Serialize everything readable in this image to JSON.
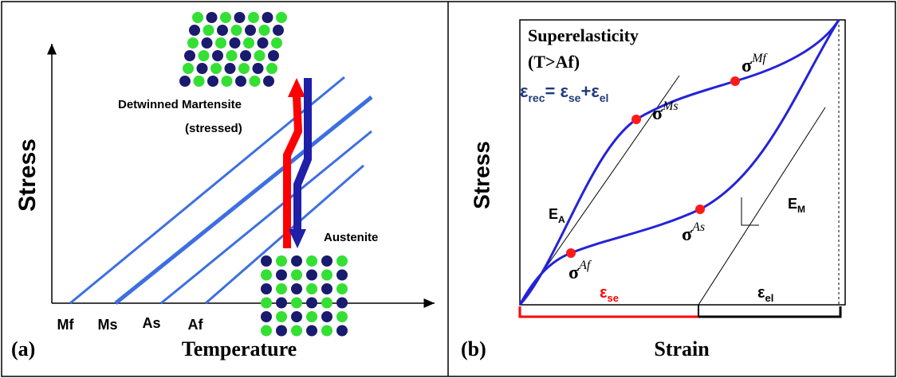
{
  "panel_a": {
    "y_label": "Stress",
    "x_label": "Temperature",
    "panel_label": "(a)",
    "ticks": [
      "Mf",
      "Ms",
      "As",
      "Af"
    ],
    "phase_top": "Detwinned Martensite",
    "phase_top_note": "(stressed)",
    "phase_bottom": "Austenite"
  },
  "panel_b": {
    "y_label": "Stress",
    "x_label": "Strain",
    "panel_label": "(b)",
    "title": "Superelasticity",
    "condition": "(T>Af)",
    "equation": [
      "ε",
      "rec",
      "= ε",
      "se",
      "+ε",
      "el"
    ],
    "modulus_a": {
      "symbol": "E",
      "sub": "A"
    },
    "modulus_m": {
      "symbol": "E",
      "sub": "M"
    },
    "points": [
      {
        "symbol": "σ",
        "sup": "Ms"
      },
      {
        "symbol": "σ",
        "sup": "Mf"
      },
      {
        "symbol": "σ",
        "sup": "As"
      },
      {
        "symbol": "σ",
        "sup": "Af"
      }
    ],
    "strain_se": {
      "symbol": "ε",
      "sub": "se"
    },
    "strain_el": {
      "symbol": "ε",
      "sub": "el"
    }
  }
}
